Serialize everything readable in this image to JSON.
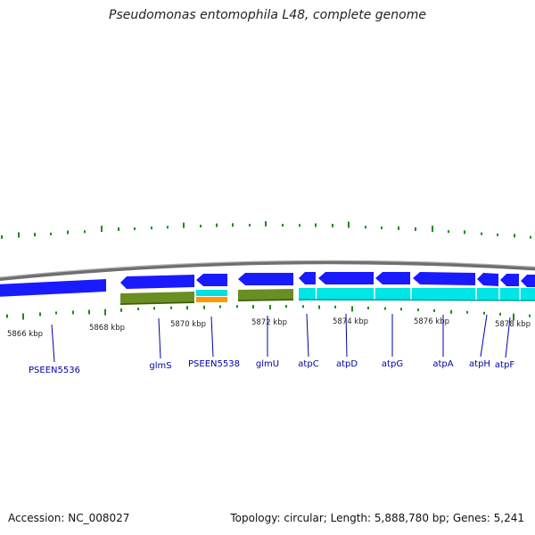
{
  "title": "Pseudomonas entomophila L48, complete genome",
  "footer": {
    "accession": "Accession: NC_008027",
    "summary": "Topology: circular; Length: 5,888,780 bp; Genes: 5,241"
  },
  "colors": {
    "backbone": "#8a8a8a",
    "gene_forward": "#1a1aff",
    "cds_green": "#6b8e23",
    "rna_cyan": "#00e5e5",
    "orange": "#ff9900",
    "gc_tick": "#1a8c1a",
    "gene_label": "#0000aa"
  },
  "scale_ticks": [
    {
      "label": "5866 kbp",
      "kbp": 5866
    },
    {
      "label": "5868 kbp",
      "kbp": 5868
    },
    {
      "label": "5870 kbp",
      "kbp": 5870
    },
    {
      "label": "5872 kbp",
      "kbp": 5872
    },
    {
      "label": "5874 kbp",
      "kbp": 5874
    },
    {
      "label": "5876 kbp",
      "kbp": 5876
    },
    {
      "label": "5878 kbp",
      "kbp": 5878
    }
  ],
  "gene_labels": [
    {
      "name": "PSEEN5536"
    },
    {
      "name": "glmS"
    },
    {
      "name": "PSEEN5538"
    },
    {
      "name": "glmU"
    },
    {
      "name": "atpC"
    },
    {
      "name": "atpD"
    },
    {
      "name": "atpG"
    },
    {
      "name": "atpA"
    },
    {
      "name": "atpH"
    },
    {
      "name": "atpF"
    }
  ]
}
